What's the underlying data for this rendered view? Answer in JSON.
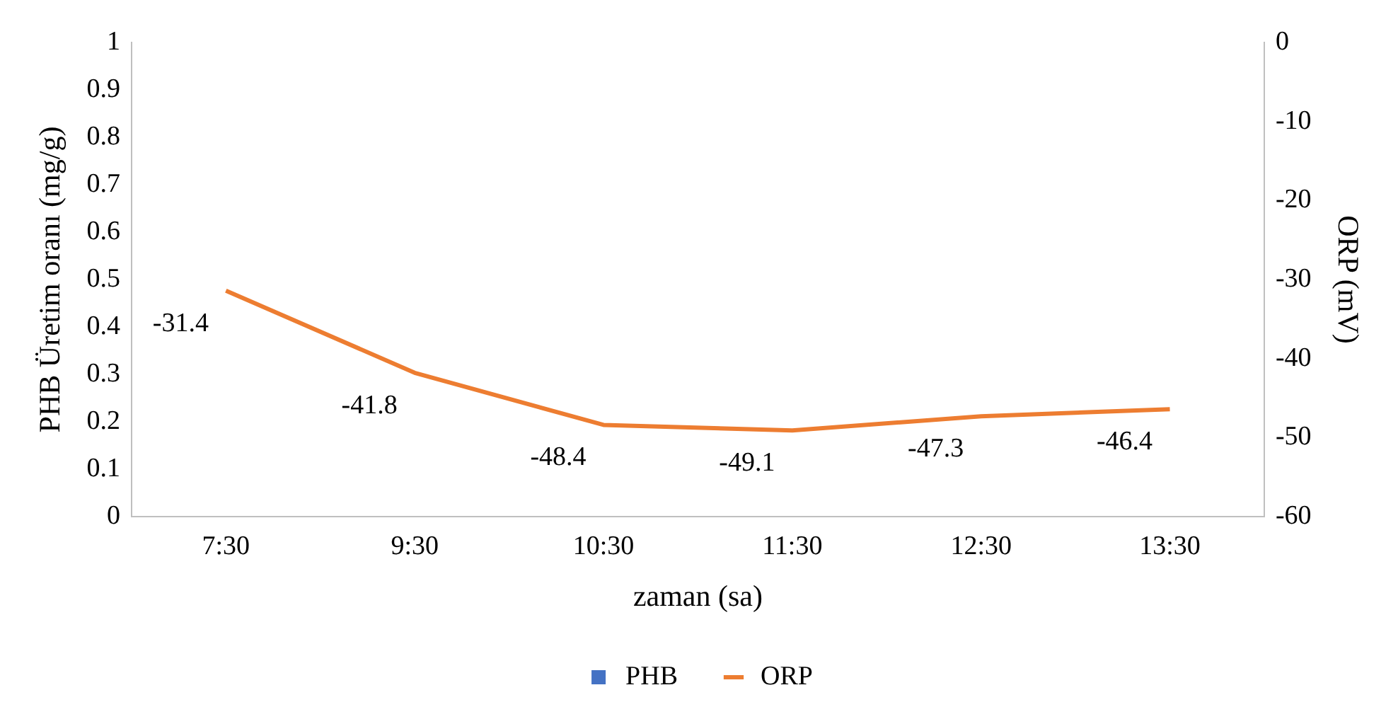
{
  "chart_data": {
    "type": "bar",
    "xlabel": "zaman (sa)",
    "ylabel": "PHB Üretim oranı (mg/g)",
    "y2label": "ORP (mV)",
    "categories": [
      "7:30",
      "9:30",
      "10:30",
      "11:30",
      "12:30",
      "13:30"
    ],
    "series": [
      {
        "name": "PHB",
        "color": "#4472c4",
        "values": [
          null,
          null,
          null,
          null,
          null,
          null
        ]
      },
      {
        "name": "ORP",
        "type": "line",
        "axis": "y2",
        "color": "#ed7d31",
        "values": [
          -31.4,
          -41.8,
          -48.4,
          -49.1,
          -47.3,
          -46.4
        ]
      }
    ],
    "ylim": [
      0,
      1
    ],
    "yticks": [
      0,
      {
        "value": 0.1,
        "label": "0.1"
      },
      {
        "value": 0.2,
        "label": "0.2"
      },
      {
        "value": 0.3,
        "label": "0.3"
      },
      {
        "value": 0.4,
        "label": "0.4"
      },
      {
        "value": 0.5,
        "label": "0.5"
      },
      {
        "value": 0.6,
        "label": "0.6"
      },
      {
        "value": 0.7,
        "label": "0.7"
      },
      {
        "value": 0.8,
        "label": "0.8"
      },
      {
        "value": 0.9,
        "label": "0.9"
      },
      1
    ],
    "y2lim": [
      -60,
      0
    ],
    "y2ticks": [
      -60,
      -50,
      -40,
      -30,
      -20,
      -10,
      0
    ],
    "data_labels": true,
    "legend": "bottom",
    "grid": false,
    "marker": "none",
    "line_style": "solid"
  }
}
